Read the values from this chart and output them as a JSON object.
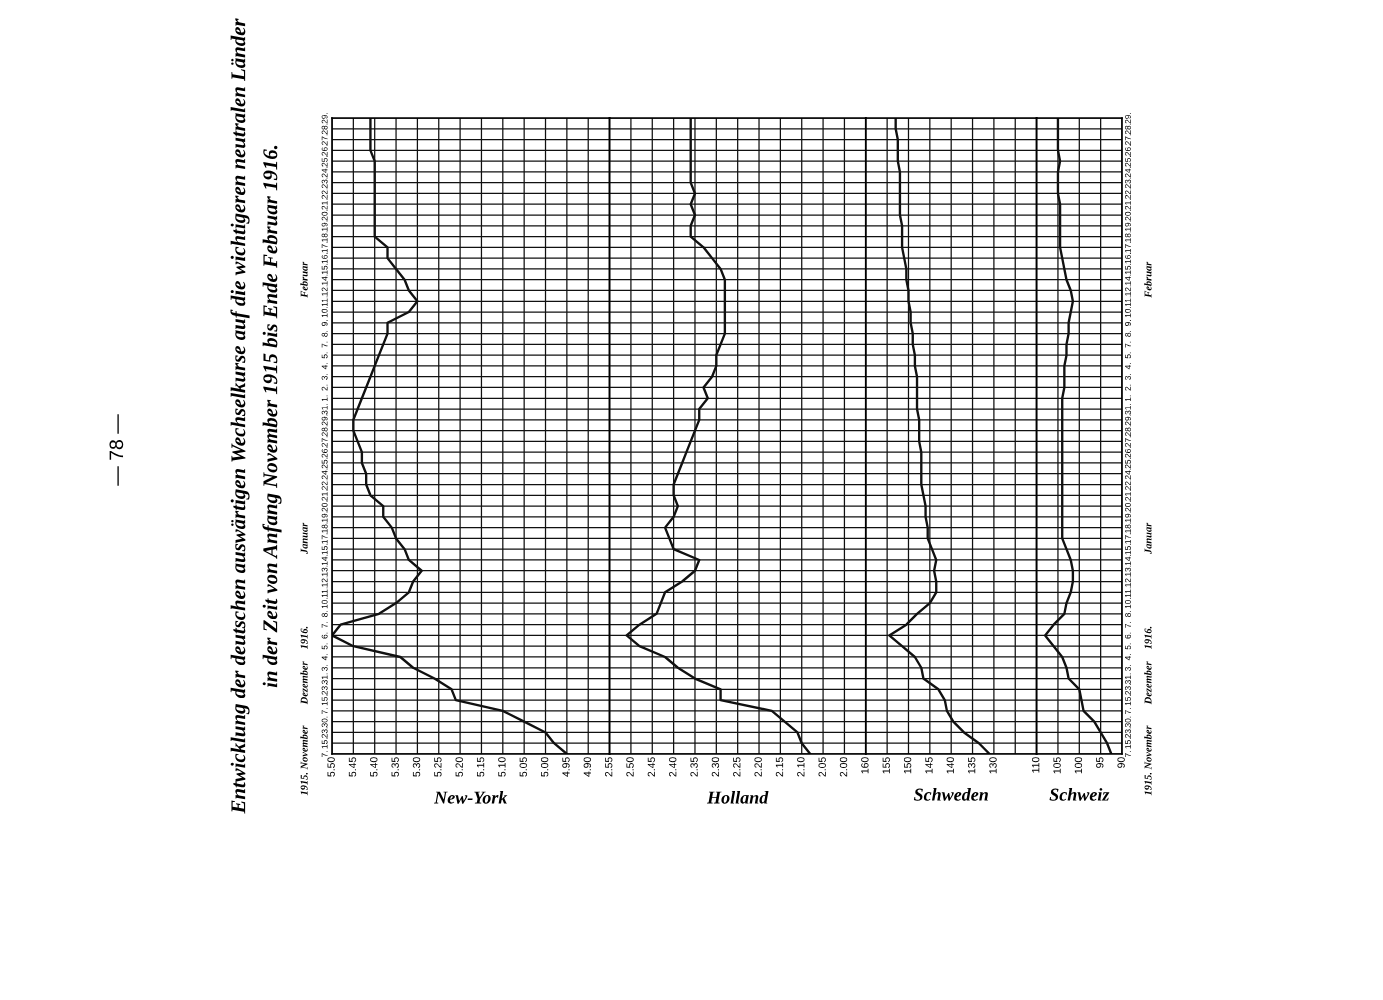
{
  "chart_data": [
    {
      "type": "line",
      "orientation": "horizontal",
      "title": "Entwicklung der deutschen auswärtigen Wechselkurse auf die wichtigeren neutralen Länder",
      "subtitle": "in der Zeit von Anfang November 1915 bis Ende Februar 1916.",
      "xlabel": "New-York",
      "annotations": [
        "1915. November",
        "Dezember",
        "1916.",
        "Januar",
        "Februar",
        "— 78 —"
      ],
      "categories": [
        "29.",
        "28.",
        "27.",
        "26.",
        "25.",
        "24.",
        "23.",
        "22.",
        "21.",
        "20.",
        "19.",
        "18.",
        "17.",
        "16.",
        "15.",
        "14.",
        "12.",
        "11.",
        "10.",
        "9.",
        "8.",
        "7.",
        "5.",
        "4.",
        "3.",
        "2.",
        "1.",
        "31.",
        "29.",
        "28.",
        "27.",
        "26.",
        "25.",
        "24.",
        "22.",
        "21.",
        "20.",
        "19.",
        "18.",
        "17.",
        "15.",
        "14.",
        "13.",
        "12.",
        "11.",
        "10.",
        "8.",
        "7.",
        "6.",
        "5.",
        "4.",
        "3.",
        "31.",
        "23.",
        "15.",
        "7.",
        "30.",
        "23.",
        "15.",
        "7."
      ],
      "series": [
        {
          "color": "#111111",
          "values": [
            5.41,
            5.41,
            5.41,
            5.41,
            5.4,
            5.4,
            5.4,
            5.4,
            5.4,
            5.4,
            5.4,
            5.4,
            5.37,
            5.37,
            5.35,
            5.33,
            5.32,
            5.3,
            5.32,
            5.37,
            5.37,
            5.38,
            5.39,
            5.4,
            5.41,
            5.42,
            5.43,
            5.44,
            5.45,
            5.45,
            5.44,
            5.43,
            5.43,
            5.42,
            5.42,
            5.41,
            5.38,
            5.38,
            5.36,
            5.35,
            5.33,
            5.32,
            5.29,
            5.31,
            5.32,
            5.35,
            5.39,
            5.48,
            5.5,
            5.45,
            5.34,
            5.31,
            5.26,
            5.22,
            5.21,
            5.1,
            5.05,
            5.0,
            4.98,
            4.95
          ]
        }
      ],
      "xlim": [
        5.5,
        4.85
      ],
      "xticks": [
        {
          "value": 5.5,
          "label": "5.50"
        },
        5.45,
        {
          "value": 5.4,
          "label": "5.40"
        },
        5.35,
        {
          "value": 5.3,
          "label": "5.30"
        },
        5.25,
        {
          "value": 5.2,
          "label": "5.20"
        },
        5.15,
        {
          "value": 5.1,
          "label": "5.10"
        },
        5.05,
        {
          "value": 5.0,
          "label": "5.00"
        },
        4.95,
        {
          "value": 4.9,
          "label": "4.90"
        }
      ],
      "grid": true
    },
    {
      "type": "line",
      "orientation": "horizontal",
      "xlabel": "Holland",
      "tick_labels": "x",
      "categories": [
        "29.",
        "28.",
        "27.",
        "26.",
        "25.",
        "24.",
        "23.",
        "22.",
        "21.",
        "20.",
        "19.",
        "18.",
        "17.",
        "16.",
        "15.",
        "14.",
        "12.",
        "11.",
        "10.",
        "9.",
        "8.",
        "7.",
        "5.",
        "4.",
        "3.",
        "2.",
        "1.",
        "31.",
        "29.",
        "28.",
        "27.",
        "26.",
        "25.",
        "24.",
        "22.",
        "21.",
        "20.",
        "19.",
        "18.",
        "17.",
        "15.",
        "14.",
        "13.",
        "12.",
        "11.",
        "10.",
        "8.",
        "7.",
        "6.",
        "5.",
        "4.",
        "3.",
        "31.",
        "23.",
        "15.",
        "7.",
        "30.",
        "23.",
        "15.",
        "7."
      ],
      "series": [
        {
          "color": "#111111",
          "values": [
            2.36,
            2.36,
            2.36,
            2.36,
            2.36,
            2.36,
            2.36,
            2.35,
            2.36,
            2.35,
            2.36,
            2.36,
            2.33,
            2.31,
            2.29,
            2.28,
            2.28,
            2.28,
            2.28,
            2.28,
            2.28,
            2.29,
            2.3,
            2.3,
            2.31,
            2.33,
            2.32,
            2.34,
            2.34,
            2.35,
            2.36,
            2.37,
            2.38,
            2.39,
            2.4,
            2.4,
            2.39,
            2.4,
            2.42,
            2.41,
            2.4,
            2.34,
            2.35,
            2.38,
            2.42,
            2.43,
            2.44,
            2.48,
            2.51,
            2.48,
            2.42,
            2.39,
            2.35,
            2.29,
            2.29,
            2.17,
            2.14,
            2.11,
            2.1,
            2.08
          ]
        }
      ],
      "xlim": [
        2.55,
        1.95
      ],
      "xticks": [
        2.55,
        {
          "value": 2.5,
          "label": "2.50"
        },
        2.45,
        {
          "value": 2.4,
          "label": "2.40"
        },
        2.35,
        {
          "value": 2.3,
          "label": "2.30"
        },
        2.25,
        {
          "value": 2.2,
          "label": "2.20"
        },
        2.15,
        {
          "value": 2.1,
          "label": "2.10"
        },
        2.05,
        {
          "value": 2.0,
          "label": "2.00"
        }
      ],
      "grid": true
    },
    {
      "type": "line",
      "orientation": "horizontal",
      "xlabel": "Schweden",
      "tick_labels": "x",
      "categories": [
        "29.",
        "28.",
        "27.",
        "26.",
        "25.",
        "24.",
        "23.",
        "22.",
        "21.",
        "20.",
        "19.",
        "18.",
        "17.",
        "16.",
        "15.",
        "14.",
        "12.",
        "11.",
        "10.",
        "9.",
        "8.",
        "7.",
        "5.",
        "4.",
        "3.",
        "2.",
        "1.",
        "31.",
        "29.",
        "28.",
        "27.",
        "26.",
        "25.",
        "24.",
        "22.",
        "21.",
        "20.",
        "19.",
        "18.",
        "17.",
        "15.",
        "14.",
        "13.",
        "12.",
        "11.",
        "10.",
        "8.",
        "7.",
        "6.",
        "5.",
        "4.",
        "3.",
        "31.",
        "23.",
        "15.",
        "7.",
        "30.",
        "23.",
        "15.",
        "7."
      ],
      "series": [
        {
          "color": "#111111",
          "values": [
            153,
            153,
            152.5,
            152.5,
            152.5,
            152,
            152,
            152,
            152,
            152,
            151.5,
            151.5,
            151.5,
            151,
            150.5,
            150.5,
            150,
            150,
            149.5,
            149.5,
            149,
            149,
            148.5,
            148.5,
            148,
            148,
            148,
            148,
            147.5,
            147.5,
            147.5,
            147,
            147,
            147,
            147,
            146.5,
            146,
            146,
            145.5,
            145.5,
            144.5,
            143.5,
            144,
            143.5,
            143.5,
            145,
            148,
            150.5,
            154.5,
            151.5,
            148.5,
            147,
            146.5,
            143,
            141.5,
            141,
            139.5,
            137,
            133.5,
            131
          ]
        }
      ],
      "xlim": [
        160,
        120
      ],
      "xticks": [
        160,
        155,
        150,
        145,
        140,
        135,
        130,
        {
          "value": 125,
          "label": null
        }
      ],
      "grid": true
    },
    {
      "type": "line",
      "orientation": "horizontal",
      "xlabel": "Schweiz",
      "categories": [
        "29.",
        "28.",
        "27.",
        "26.",
        "25.",
        "24.",
        "23.",
        "22.",
        "21.",
        "20.",
        "19.",
        "18.",
        "17.",
        "16.",
        "15.",
        "14.",
        "12.",
        "11.",
        "10.",
        "9.",
        "8.",
        "7.",
        "5.",
        "4.",
        "3.",
        "2.",
        "1.",
        "31.",
        "29.",
        "28.",
        "27.",
        "26.",
        "25.",
        "24.",
        "22.",
        "21.",
        "20.",
        "19.",
        "18.",
        "17.",
        "15.",
        "14.",
        "13.",
        "12.",
        "11.",
        "10.",
        "8.",
        "7.",
        "6.",
        "5.",
        "4.",
        "3.",
        "31.",
        "23.",
        "15.",
        "7.",
        "30.",
        "23.",
        "15.",
        "7."
      ],
      "series": [
        {
          "color": "#111111",
          "values": [
            105,
            105,
            105,
            105,
            104.5,
            105,
            105,
            105,
            104.5,
            104.5,
            104.5,
            104.5,
            104.5,
            104,
            103.5,
            103,
            102,
            101.5,
            102,
            102.5,
            102.5,
            103,
            103,
            103.5,
            103.5,
            103.5,
            104,
            104,
            104,
            104,
            104,
            104,
            104,
            104,
            104,
            104,
            104,
            104,
            104,
            104,
            103,
            102,
            101.5,
            101.5,
            102,
            103,
            103.5,
            106,
            108,
            106,
            104,
            103,
            102.5,
            100,
            99.5,
            99,
            96.5,
            95,
            93.5,
            92.5
          ]
        }
      ],
      "xlim": [
        110,
        90
      ],
      "xticks": [
        110,
        105,
        100,
        95,
        90
      ],
      "grid": true
    }
  ]
}
